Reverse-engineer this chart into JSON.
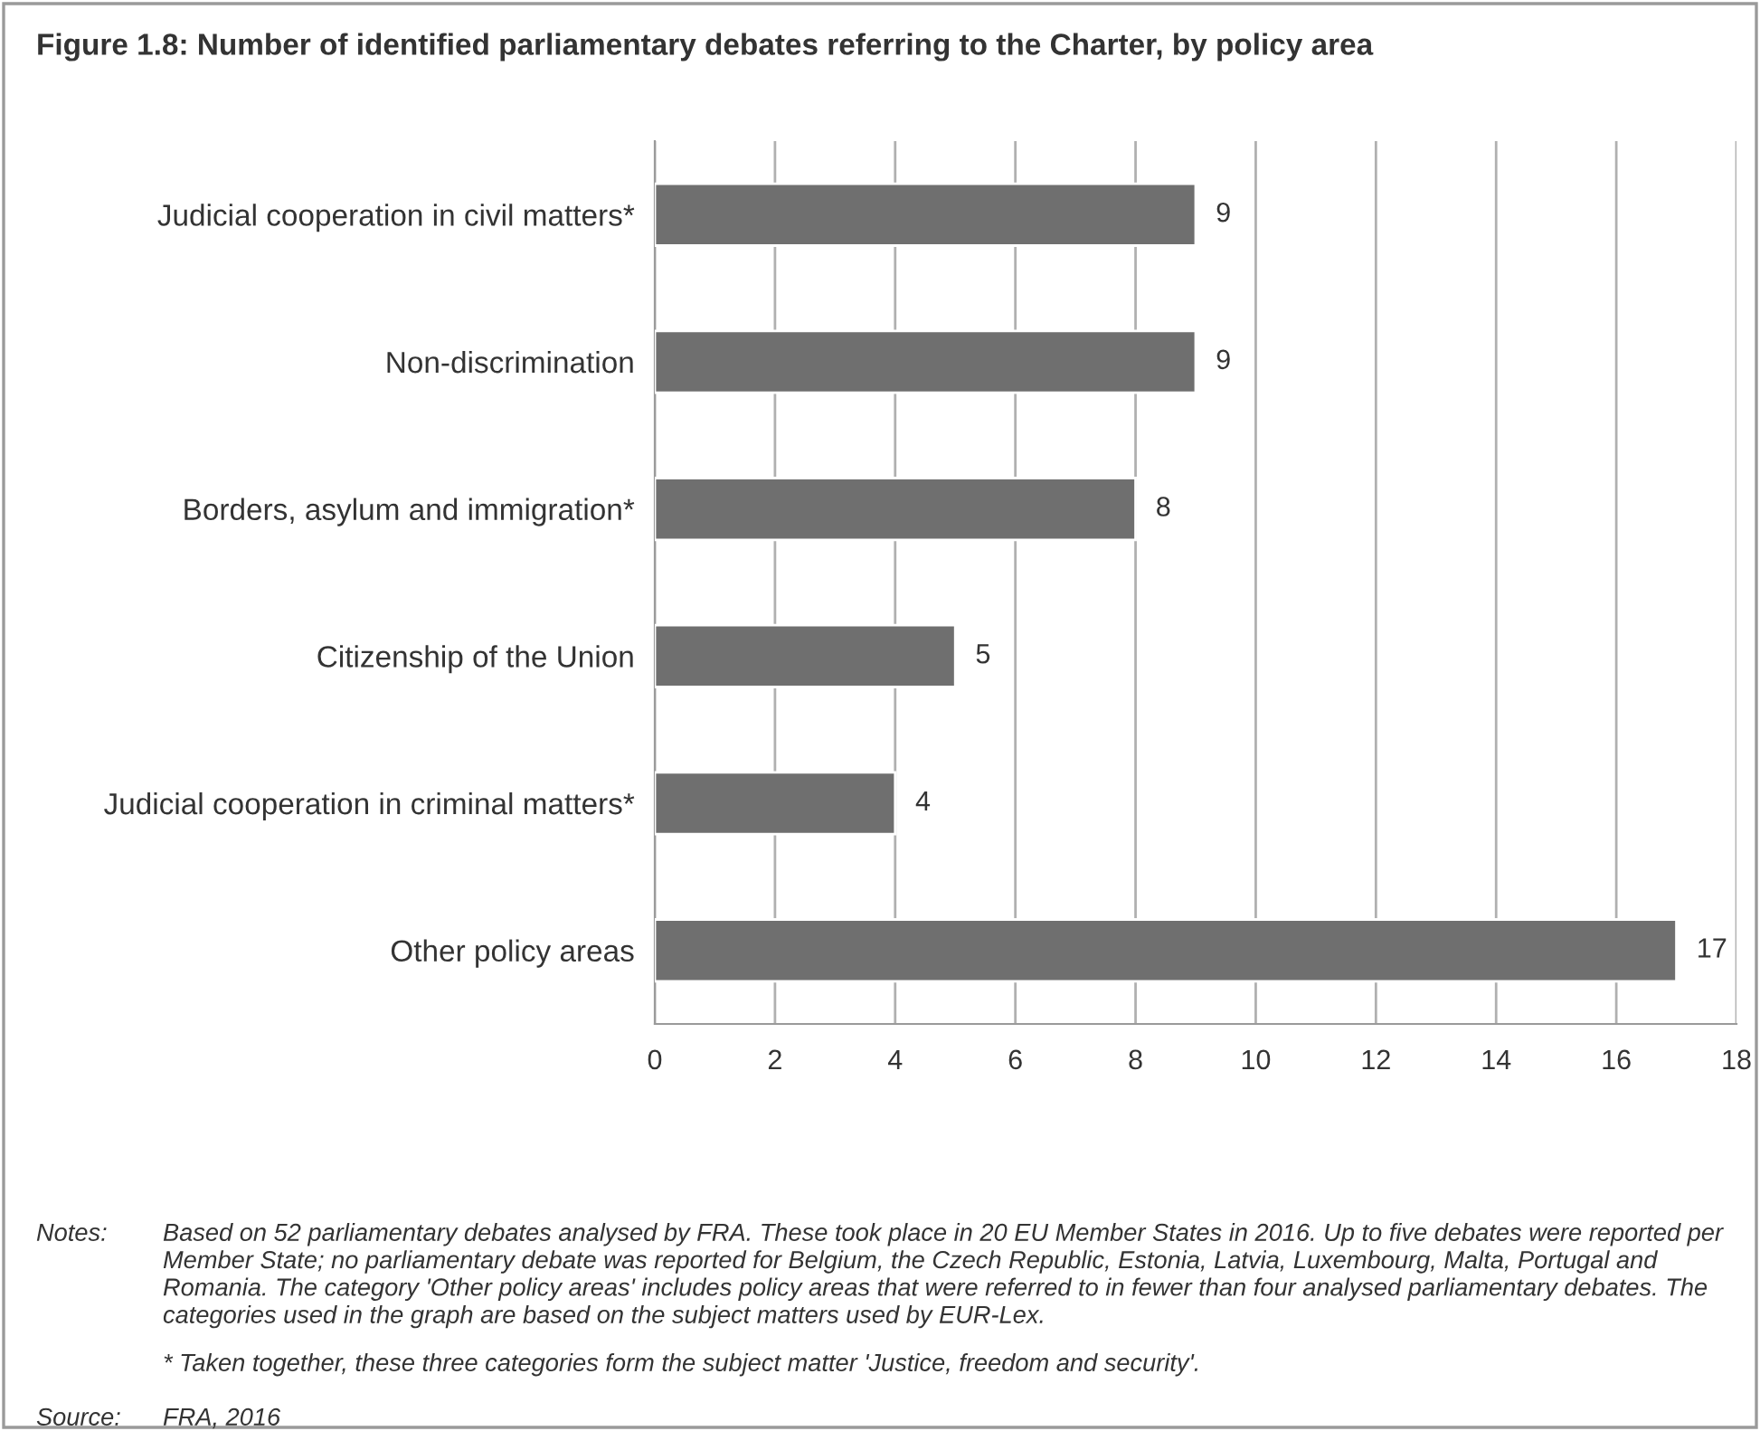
{
  "chart_data": {
    "type": "bar",
    "orientation": "horizontal",
    "title": "Figure 1.8: Number of identified parliamentary debates referring to the Charter, by policy area",
    "categories": [
      "Judicial cooperation in civil matters*",
      "Non-discrimination",
      "Borders, asylum and immigration*",
      "Citizenship of the Union",
      "Judicial cooperation in criminal matters*",
      "Other policy areas"
    ],
    "values": [
      9,
      9,
      8,
      5,
      4,
      17
    ],
    "color": "#6f6f6f",
    "xlim": [
      0,
      18
    ],
    "xticks": [
      0,
      2,
      4,
      6,
      8,
      10,
      12,
      14,
      16,
      18
    ],
    "grid": "x",
    "data_labels": true,
    "annotations": [
      "Notes:",
      "Based on 52 parliamentary debates analysed by FRA. These took place in 20 EU Member States in 2016. Up to five debates were reported per Member State; no parliamentary debate was reported for Belgium, the Czech Republic, Estonia, Latvia, Luxembourg, Malta, Portugal and Romania. The category 'Other policy areas' includes policy areas that were referred to in fewer than four analysed parliamentary debates. The categories used in the graph are based on the subject matters used by EUR-Lex.",
      "* Taken together, these three categories form the subject matter 'Justice, freedom and security'.",
      "Source:",
      "FRA, 2016"
    ]
  }
}
